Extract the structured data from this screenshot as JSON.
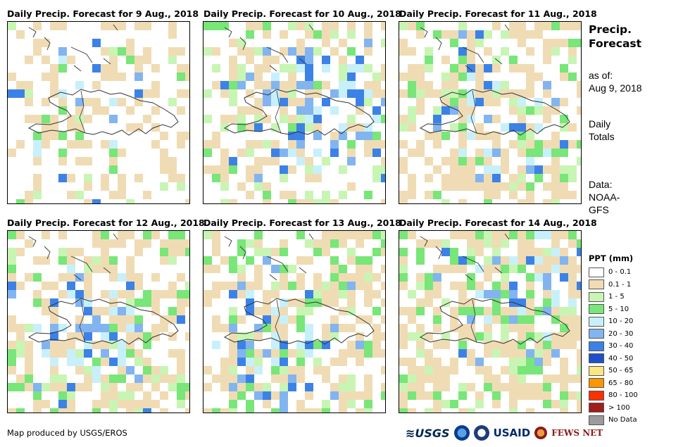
{
  "panels": [
    {
      "title": "Daily Precip. Forecast for 9 Aug., 2018"
    },
    {
      "title": "Daily Precip. Forecast for 10 Aug., 2018"
    },
    {
      "title": "Daily Precip. Forecast for 11 Aug., 2018"
    },
    {
      "title": "Daily Precip. Forecast for 12 Aug., 2018"
    },
    {
      "title": "Daily Precip. Forecast for 13 Aug., 2018"
    },
    {
      "title": "Daily Precip. Forecast for 14 Aug., 2018"
    }
  ],
  "sidebar": {
    "title": "Precip. Forecast",
    "as_of_label": "as of:",
    "as_of_date": "Aug 9, 2018",
    "totals_label": "Daily Totals",
    "data_label": "Data: NOAA-GFS"
  },
  "legend": {
    "title": "PPT (mm)",
    "items": [
      {
        "label": "0 - 0.1",
        "color": "#ffffff"
      },
      {
        "label": "0.1 - 1",
        "color": "#f0dcb4"
      },
      {
        "label": "1 - 5",
        "color": "#c8f5b4"
      },
      {
        "label": "5 - 10",
        "color": "#78e678"
      },
      {
        "label": "10 - 20",
        "color": "#c8f0fa"
      },
      {
        "label": "20 - 30",
        "color": "#82b4f0"
      },
      {
        "label": "30 - 40",
        "color": "#3c82e6"
      },
      {
        "label": "40 - 50",
        "color": "#1e50c8"
      },
      {
        "label": "50 - 65",
        "color": "#fae682"
      },
      {
        "label": "65 - 80",
        "color": "#fa9600"
      },
      {
        "label": "80 - 100",
        "color": "#fa3200"
      },
      {
        "label": "> 100",
        "color": "#a01e1e"
      },
      {
        "label": "No Data",
        "color": "#9b9b9b"
      }
    ]
  },
  "footer": {
    "credit": "Map produced by USGS/EROS",
    "logos": {
      "usgs": "USGS",
      "usaid": "USAID",
      "fews": "FEWS NET"
    }
  }
}
